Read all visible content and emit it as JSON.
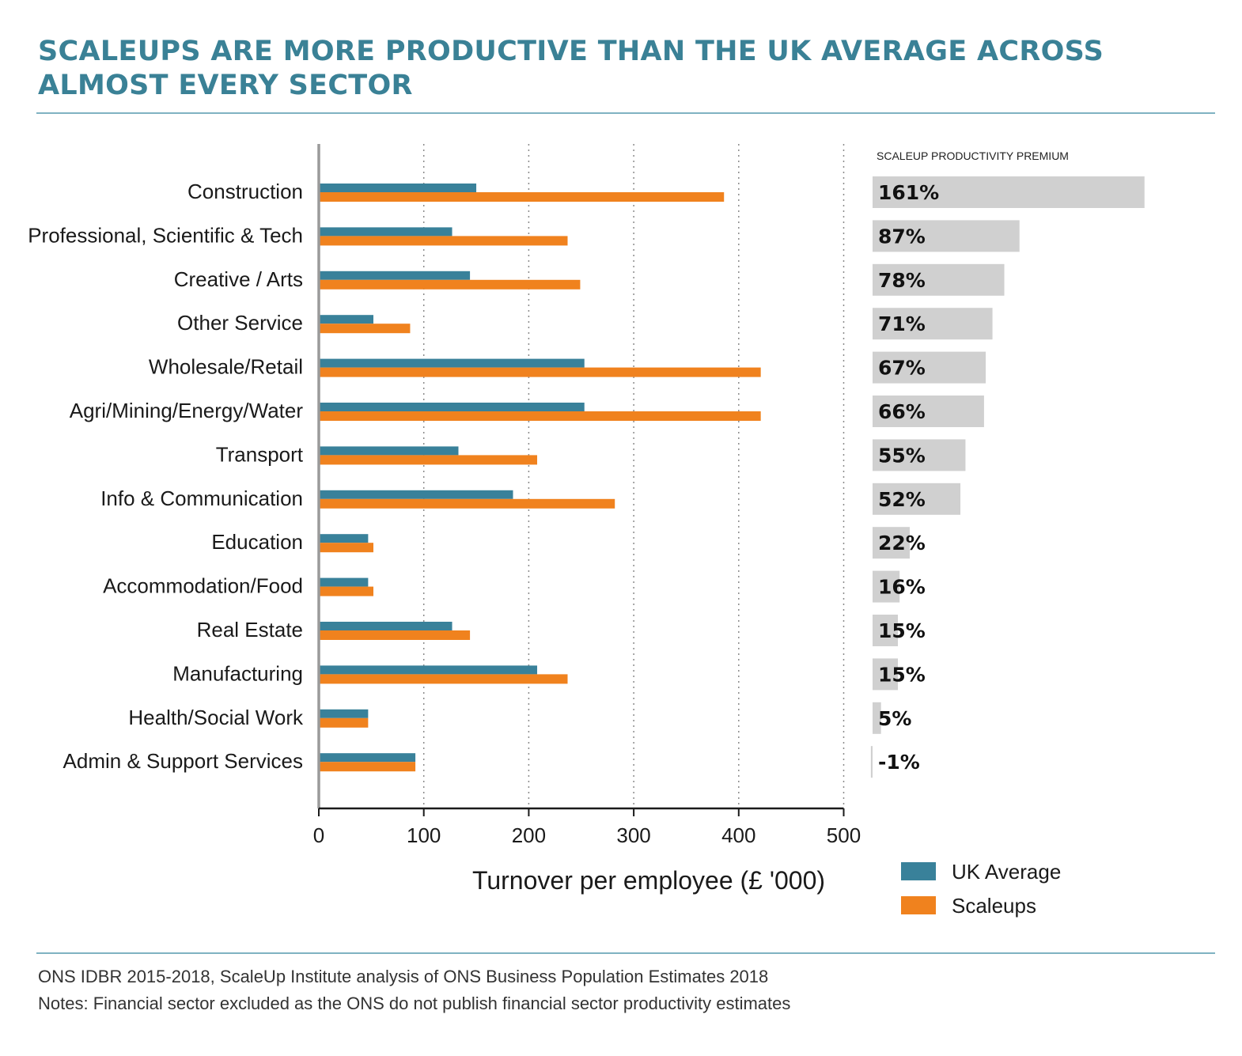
{
  "title": "SCALEUPS ARE MORE PRODUCTIVE THAN THE UK AVERAGE ACROSS ALMOST EVERY SECTOR",
  "footer": {
    "source": "ONS IDBR 2015-2018, ScaleUp Institute analysis of ONS Business Population Estimates 2018",
    "notes": "Notes: Financial sector excluded as the ONS do not publish financial sector productivity estimates"
  },
  "colors": {
    "title": "#3a8196",
    "uk_average": "#39819a",
    "scaleups": "#f0821e",
    "premium_bar": "#d0d0d0",
    "rule": "#7fb2c2"
  },
  "chart_data": [
    {
      "type": "bar",
      "orientation": "horizontal",
      "categories": [
        "Construction",
        "Professional, Scientific & Tech",
        "Creative / Arts",
        "Other Service",
        "Wholesale/Retail",
        "Agri/Mining/Energy/Water",
        "Transport",
        "Info & Communication",
        "Education",
        "Accommodation/Food",
        "Real Estate",
        "Manufacturing",
        "Health/Social Work",
        "Admin & Support Services"
      ],
      "series": [
        {
          "name": "UK Average",
          "values": [
            150,
            127,
            144,
            52,
            253,
            253,
            133,
            185,
            47,
            47,
            127,
            208,
            47,
            92
          ]
        },
        {
          "name": "Scaleups",
          "values": [
            386,
            237,
            249,
            87,
            421,
            421,
            208,
            282,
            52,
            52,
            144,
            237,
            47,
            92
          ]
        }
      ],
      "xlabel": "Turnover per employee (£ '000)",
      "xlim": [
        0,
        500
      ],
      "xticks": [
        "0",
        "100",
        "200",
        "300",
        "400",
        "500"
      ],
      "grid": "vertical dotted",
      "legend": "bottom-right"
    },
    {
      "type": "bar",
      "orientation": "horizontal",
      "title": "SCALEUP PRODUCTIVITY PREMIUM",
      "categories": [
        "Construction",
        "Professional, Scientific & Tech",
        "Creative / Arts",
        "Other Service",
        "Wholesale/Retail",
        "Agri/Mining/Energy/Water",
        "Transport",
        "Info & Communication",
        "Education",
        "Accommodation/Food",
        "Real Estate",
        "Manufacturing",
        "Health/Social Work",
        "Admin & Support Services"
      ],
      "values": [
        161,
        87,
        78,
        71,
        67,
        66,
        55,
        52,
        22,
        16,
        15,
        15,
        5,
        -1
      ],
      "labels": [
        "161%",
        "87%",
        "78%",
        "71%",
        "67%",
        "66%",
        "55%",
        "52%",
        "22%",
        "16%",
        "15%",
        "15%",
        "5%",
        "-1%"
      ]
    }
  ]
}
